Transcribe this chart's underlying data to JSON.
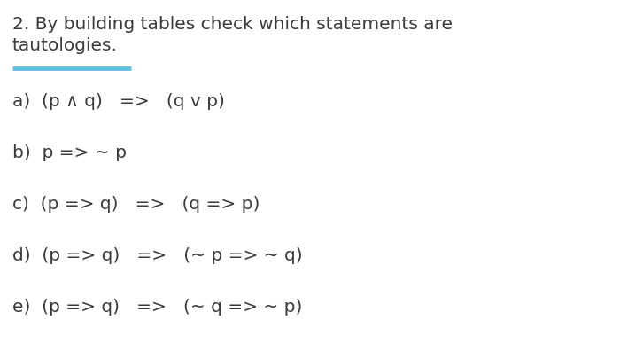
{
  "background_color": "#ffffff",
  "title_line1": "2. By building tables check which statements are",
  "title_line2": "tautologies.",
  "underline_color": "#62c0e0",
  "items": [
    "a)  (p ∧ q)   =>   (q v p)",
    "b)  p => ∼ p",
    "c)  (p => q)   =>   (q => p)",
    "d)  (p => q)   =>   (∼ p => ∼ q)",
    "e)  (p => q)   =>   (∼ q => ∼ p)"
  ],
  "title_fontsize": 14.5,
  "item_fontsize": 14.5,
  "text_color": "#3a3a3a",
  "font_family": "DejaVu Sans"
}
